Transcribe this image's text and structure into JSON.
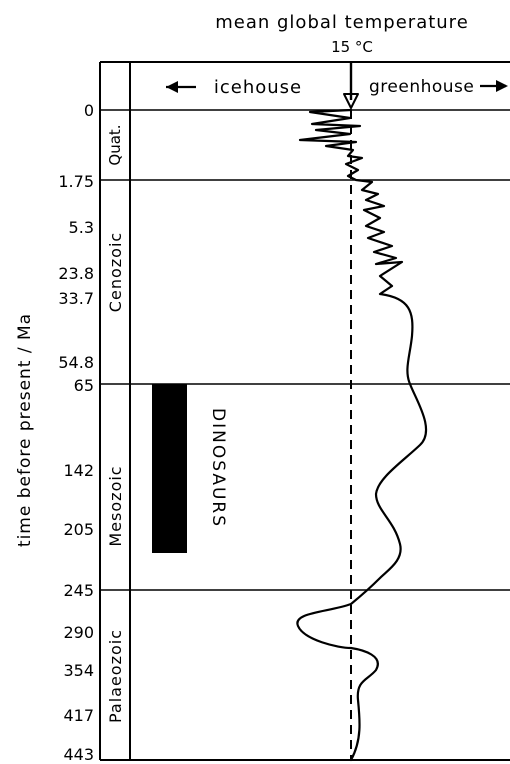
{
  "title": "mean global temperature",
  "reference": "15 °C",
  "headers": {
    "left": "icehouse",
    "right": "greenhouse"
  },
  "y_axis_label": "time before present / Ma",
  "ticks": [
    "0",
    "1.75",
    "5.3",
    "23.8",
    "33.7",
    "54.8",
    "65",
    "142",
    "205",
    "245",
    "290",
    "354",
    "417",
    "443"
  ],
  "eras": [
    "Quat.",
    "Cenozoic",
    "Mesozoic",
    "Palaeozoic"
  ],
  "era_boundaries_ma": [
    1.75,
    65,
    245
  ],
  "dinosaurs": {
    "label": "DINOSAURS",
    "from_ma": 65,
    "to_ma": 230
  },
  "colors": {
    "ink": "#000000",
    "paper": "#ffffff"
  }
}
